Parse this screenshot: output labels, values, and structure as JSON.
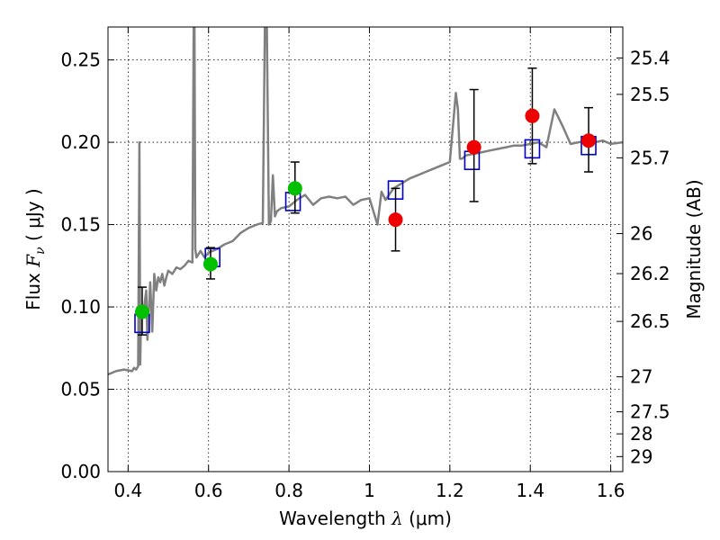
{
  "chart_data": {
    "type": "scatter",
    "xlabel_text": "Wavelength",
    "xlabel_symbol": "λ",
    "xlabel_unit": "(μm)",
    "ylabel_text": "Flux",
    "ylabel_symbol": "F",
    "ylabel_subscript": "ν",
    "ylabel_unit": "( μJy )",
    "y2label": "Magnitude (AB)",
    "xlim": [
      0.35,
      1.63
    ],
    "ylim": [
      0.0,
      0.27
    ],
    "grid": true,
    "colors": {
      "spectrum": "#808080",
      "model_box": "#0000cc",
      "green_points": "#00c000",
      "red_points": "#ee0000",
      "error_bar": "#000000"
    },
    "x_ticks": [
      {
        "value": 0.4,
        "label": "0.4"
      },
      {
        "value": 0.6,
        "label": "0.6"
      },
      {
        "value": 0.8,
        "label": "0.8"
      },
      {
        "value": 1.0,
        "label": "1"
      },
      {
        "value": 1.2,
        "label": "1.2"
      },
      {
        "value": 1.4,
        "label": "1.4"
      },
      {
        "value": 1.6,
        "label": "1.6"
      }
    ],
    "y_ticks": [
      {
        "value": 0.0,
        "label": "0.00"
      },
      {
        "value": 0.05,
        "label": "0.05"
      },
      {
        "value": 0.1,
        "label": "0.10"
      },
      {
        "value": 0.15,
        "label": "0.15"
      },
      {
        "value": 0.2,
        "label": "0.20"
      },
      {
        "value": 0.25,
        "label": "0.25"
      }
    ],
    "y2_ticks": [
      {
        "value": 25.4,
        "label": "25.4"
      },
      {
        "value": 25.5,
        "label": "25.5"
      },
      {
        "value": 25.7,
        "label": "25.7"
      },
      {
        "value": 26.0,
        "label": "26"
      },
      {
        "value": 26.2,
        "label": "26.2"
      },
      {
        "value": 26.5,
        "label": "26.5"
      },
      {
        "value": 27.0,
        "label": "27"
      },
      {
        "value": 27.5,
        "label": "27.5"
      },
      {
        "value": 28.0,
        "label": "28"
      },
      {
        "value": 29.0,
        "label": "29"
      }
    ],
    "spectrum": {
      "x": [
        0.35,
        0.37,
        0.39,
        0.41,
        0.415,
        0.42,
        0.425,
        0.428,
        0.43,
        0.432,
        0.435,
        0.44,
        0.445,
        0.448,
        0.45,
        0.455,
        0.46,
        0.465,
        0.47,
        0.475,
        0.48,
        0.485,
        0.49,
        0.495,
        0.5,
        0.51,
        0.52,
        0.53,
        0.54,
        0.55,
        0.56,
        0.563,
        0.565,
        0.567,
        0.57,
        0.58,
        0.59,
        0.6,
        0.62,
        0.64,
        0.66,
        0.68,
        0.7,
        0.72,
        0.735,
        0.74,
        0.745,
        0.75,
        0.755,
        0.76,
        0.765,
        0.77,
        0.78,
        0.8,
        0.82,
        0.84,
        0.86,
        0.88,
        0.9,
        0.92,
        0.94,
        0.96,
        0.98,
        1.0,
        1.02,
        1.03,
        1.04,
        1.06,
        1.08,
        1.1,
        1.12,
        1.14,
        1.16,
        1.18,
        1.2,
        1.215,
        1.22,
        1.225,
        1.23,
        1.24,
        1.26,
        1.28,
        1.3,
        1.32,
        1.34,
        1.36,
        1.38,
        1.4,
        1.42,
        1.44,
        1.46,
        1.48,
        1.5,
        1.52,
        1.54,
        1.56,
        1.58,
        1.6,
        1.63
      ],
      "y": [
        0.059,
        0.061,
        0.062,
        0.061,
        0.063,
        0.062,
        0.064,
        0.2,
        0.065,
        0.09,
        0.095,
        0.1,
        0.11,
        0.08,
        0.09,
        0.115,
        0.085,
        0.12,
        0.11,
        0.118,
        0.115,
        0.12,
        0.113,
        0.118,
        0.122,
        0.12,
        0.124,
        0.123,
        0.125,
        0.128,
        0.127,
        0.27,
        0.27,
        0.135,
        0.13,
        0.134,
        0.13,
        0.133,
        0.135,
        0.138,
        0.14,
        0.145,
        0.148,
        0.15,
        0.151,
        0.27,
        0.27,
        0.15,
        0.152,
        0.18,
        0.155,
        0.158,
        0.16,
        0.161,
        0.165,
        0.168,
        0.162,
        0.166,
        0.167,
        0.166,
        0.167,
        0.162,
        0.165,
        0.166,
        0.15,
        0.17,
        0.165,
        0.172,
        0.175,
        0.178,
        0.18,
        0.182,
        0.184,
        0.186,
        0.188,
        0.23,
        0.22,
        0.19,
        0.19,
        0.192,
        0.193,
        0.194,
        0.195,
        0.196,
        0.197,
        0.198,
        0.198,
        0.199,
        0.2,
        0.197,
        0.22,
        0.21,
        0.199,
        0.2,
        0.201,
        0.2,
        0.201,
        0.199,
        0.2
      ]
    },
    "model_boxes": [
      {
        "x": 0.435,
        "y": 0.09
      },
      {
        "x": 0.61,
        "y": 0.13
      },
      {
        "x": 0.81,
        "y": 0.164
      },
      {
        "x": 1.065,
        "y": 0.171
      },
      {
        "x": 1.255,
        "y": 0.189
      },
      {
        "x": 1.405,
        "y": 0.196
      },
      {
        "x": 1.545,
        "y": 0.198
      }
    ],
    "green_points": [
      {
        "x": 0.435,
        "y": 0.097,
        "err_lo": 0.083,
        "err_hi": 0.112
      },
      {
        "x": 0.605,
        "y": 0.126,
        "err_lo": 0.117,
        "err_hi": 0.136
      },
      {
        "x": 0.815,
        "y": 0.172,
        "err_lo": 0.157,
        "err_hi": 0.188
      }
    ],
    "red_points": [
      {
        "x": 1.065,
        "y": 0.153,
        "err_lo": 0.134,
        "err_hi": 0.172
      },
      {
        "x": 1.26,
        "y": 0.197,
        "err_lo": 0.164,
        "err_hi": 0.232
      },
      {
        "x": 1.405,
        "y": 0.216,
        "err_lo": 0.187,
        "err_hi": 0.245
      },
      {
        "x": 1.545,
        "y": 0.201,
        "err_lo": 0.182,
        "err_hi": 0.221
      }
    ]
  }
}
